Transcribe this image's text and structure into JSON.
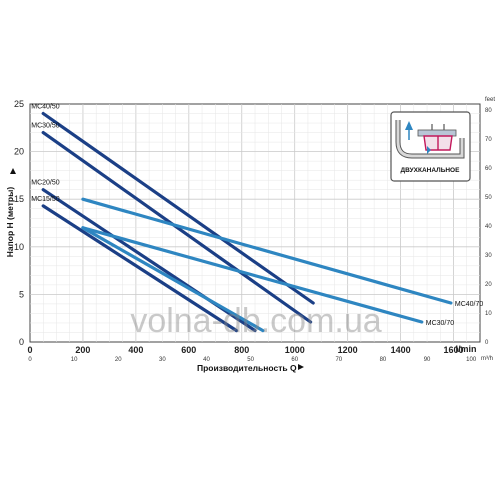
{
  "chart_data": {
    "type": "line",
    "watermark": "volna-db.com.ua",
    "xlabel": "Производительность Q",
    "xunit": "l/min",
    "xunit_secondary": "m³/h",
    "ylabel": "Напор H (метры)",
    "yunit_secondary": "feet",
    "xlim": [
      0,
      1700
    ],
    "ylim": [
      0,
      25
    ],
    "x_ticks": [
      0,
      200,
      400,
      600,
      800,
      1000,
      1200,
      1400,
      1600
    ],
    "x_tick_labels": [
      "0",
      "200",
      "400",
      "600",
      "800",
      "1000",
      "1200",
      "1400",
      "1600"
    ],
    "y_ticks": [
      0,
      5,
      10,
      15,
      20,
      25
    ],
    "y_tick_labels": [
      "0",
      "5",
      "10",
      "15",
      "20",
      "25"
    ],
    "x2_ticks": [
      0,
      10,
      20,
      30,
      40,
      50,
      60,
      70,
      80,
      90,
      100
    ],
    "x2_tick_labels": [
      "0",
      "10",
      "20",
      "30",
      "40",
      "50",
      "60",
      "70",
      "80",
      "90",
      "100"
    ],
    "y2_ticks": [
      0,
      10,
      20,
      30,
      40,
      50,
      60,
      70,
      80
    ],
    "y2_tick_labels": [
      "0",
      "10",
      "20",
      "30",
      "40",
      "50",
      "60",
      "70",
      "80"
    ],
    "grid": true,
    "legend": "labels at line ends",
    "inset_label": "ДВУХКАНАЛЬНОЕ",
    "series": [
      {
        "name": "MC40/50",
        "label_at": "start",
        "color": "#1b3f86",
        "x": [
          50,
          1070
        ],
        "y": [
          24,
          4.1
        ]
      },
      {
        "name": "MC30/50",
        "label_at": "start",
        "color": "#1b3f86",
        "x": [
          50,
          1060
        ],
        "y": [
          22,
          2.1
        ]
      },
      {
        "name": "MC20/50",
        "label_at": "start",
        "color": "#1b3f86",
        "x": [
          50,
          850
        ],
        "y": [
          16,
          1.2
        ]
      },
      {
        "name": "MC15/50",
        "label_at": "start",
        "color": "#1b3f86",
        "x": [
          50,
          780
        ],
        "y": [
          14.3,
          1.2
        ]
      },
      {
        "name": "MC40/70",
        "label_at": "end",
        "color": "#2e86c1",
        "x": [
          200,
          1590
        ],
        "y": [
          15,
          4.1
        ]
      },
      {
        "name": "MC30/70",
        "label_at": "end",
        "color": "#2e86c1",
        "x": [
          200,
          1480
        ],
        "y": [
          12,
          2.1
        ]
      },
      {
        "name": "",
        "label_at": "none",
        "color": "#2e86c1",
        "x": [
          200,
          880
        ],
        "y": [
          12,
          1.2
        ]
      }
    ]
  }
}
